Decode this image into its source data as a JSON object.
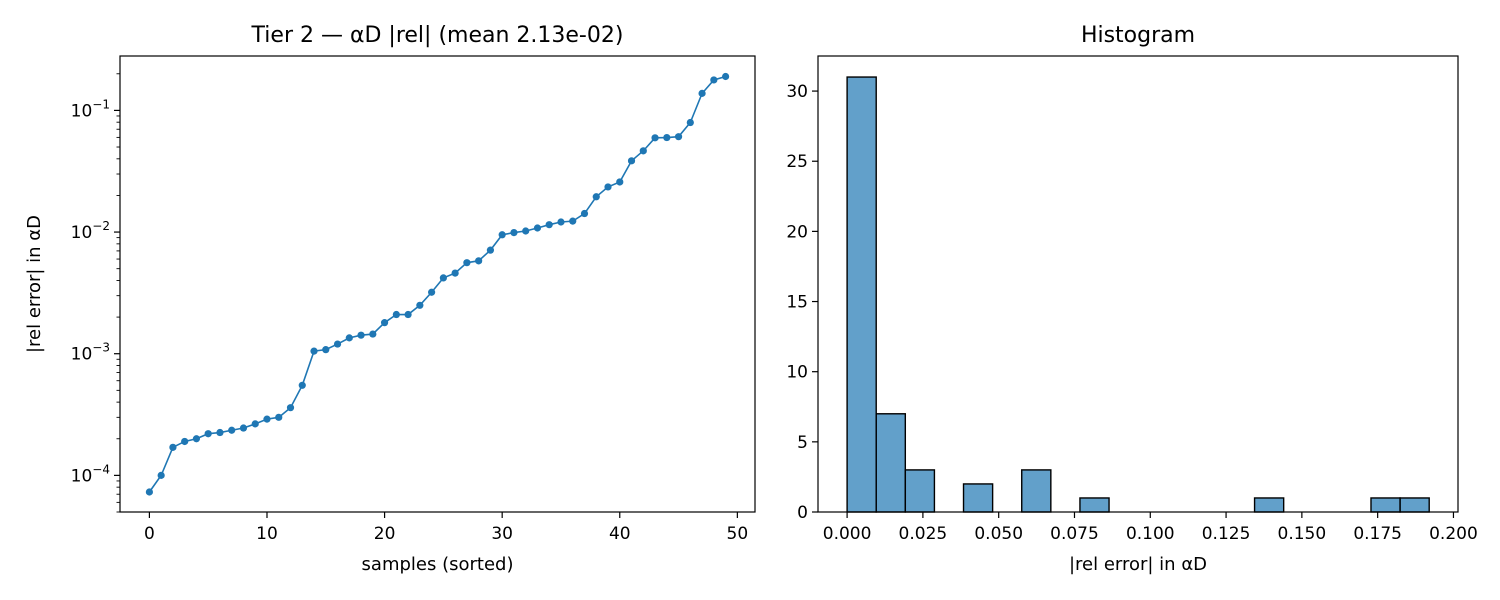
{
  "chart_data": [
    {
      "type": "line",
      "title": "Tier 2 — αD |rel| (mean 2.13e-02)",
      "xlabel": "samples (sorted)",
      "ylabel": "|rel error| in αD",
      "yscale": "log",
      "xlim": [
        -2.5,
        51.5
      ],
      "ylim": [
        5e-05,
        0.28
      ],
      "xticks": [
        0,
        10,
        20,
        30,
        40,
        50
      ],
      "xtick_labels": [
        "0",
        "10",
        "20",
        "30",
        "40",
        "50"
      ],
      "yticks": [
        0.0001,
        0.001,
        0.01,
        0.1
      ],
      "ytick_labels": [
        {
          "base": "10",
          "exp": "−4"
        },
        {
          "base": "10",
          "exp": "−3"
        },
        {
          "base": "10",
          "exp": "−2"
        },
        {
          "base": "10",
          "exp": "−1"
        }
      ],
      "grid": false,
      "color": "#1f77b4",
      "x": [
        0,
        1,
        2,
        3,
        4,
        5,
        6,
        7,
        8,
        9,
        10,
        11,
        12,
        13,
        14,
        15,
        16,
        17,
        18,
        19,
        20,
        21,
        22,
        23,
        24,
        25,
        26,
        27,
        28,
        29,
        30,
        31,
        32,
        33,
        34,
        35,
        36,
        37,
        38,
        39,
        40,
        41,
        42,
        43,
        44,
        45,
        46,
        47,
        48,
        49
      ],
      "y": [
        7.3e-05,
        0.0001,
        0.00017,
        0.00019,
        0.0002,
        0.00022,
        0.000225,
        0.000235,
        0.000245,
        0.000265,
        0.00029,
        0.0003,
        0.00036,
        0.00055,
        0.00105,
        0.00108,
        0.0012,
        0.00135,
        0.00142,
        0.00145,
        0.0018,
        0.0021,
        0.0021,
        0.0025,
        0.0032,
        0.0042,
        0.0046,
        0.0056,
        0.0058,
        0.0071,
        0.0095,
        0.0099,
        0.0102,
        0.0108,
        0.0115,
        0.0121,
        0.0123,
        0.0142,
        0.0195,
        0.0235,
        0.0258,
        0.0385,
        0.0465,
        0.0595,
        0.0598,
        0.0608,
        0.0795,
        0.138,
        0.178,
        0.19
      ]
    },
    {
      "type": "bar",
      "title": "Histogram",
      "xlabel": "|rel error| in αD",
      "ylabel": "",
      "xlim": [
        -0.0096,
        0.2015
      ],
      "ylim": [
        0,
        32.5
      ],
      "xticks": [
        0.0,
        0.025,
        0.05,
        0.075,
        0.1,
        0.125,
        0.15,
        0.175,
        0.2
      ],
      "xtick_labels": [
        "0.000",
        "0.025",
        "0.050",
        "0.075",
        "0.100",
        "0.125",
        "0.150",
        "0.175",
        "0.200"
      ],
      "yticks": [
        0,
        5,
        10,
        15,
        20,
        25,
        30
      ],
      "ytick_labels": [
        "0",
        "5",
        "10",
        "15",
        "20",
        "25",
        "30"
      ],
      "grid": false,
      "color": "#1f77b4",
      "bin_edges": [
        0.0,
        0.0096,
        0.0192,
        0.0288,
        0.0384,
        0.048,
        0.0576,
        0.0672,
        0.0768,
        0.0864,
        0.096,
        0.1056,
        0.1152,
        0.1248,
        0.1344,
        0.144,
        0.1536,
        0.1632,
        0.1728,
        0.1824,
        0.192
      ],
      "counts": [
        31,
        7,
        3,
        0,
        2,
        0,
        3,
        0,
        1,
        0,
        0,
        0,
        0,
        0,
        1,
        0,
        0,
        0,
        1,
        1
      ]
    }
  ]
}
